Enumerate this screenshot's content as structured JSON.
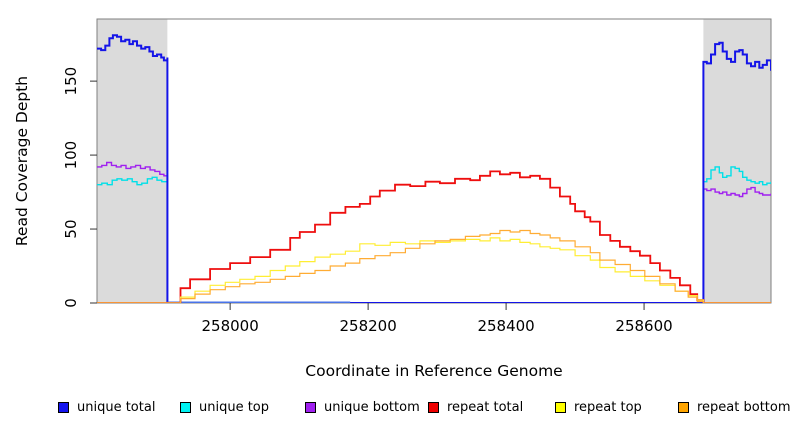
{
  "figure_title": "",
  "axes": {
    "x": {
      "title": "Coordinate in Reference Genome",
      "ticks": [
        258000,
        258200,
        258400,
        258600
      ],
      "range": [
        257807,
        258784
      ]
    },
    "y": {
      "title": "Read Coverage Depth",
      "ticks": [
        0,
        50,
        100,
        150
      ],
      "range": [
        0,
        192
      ]
    }
  },
  "legend": [
    {
      "label": "unique total",
      "color": "#1414EE"
    },
    {
      "label": "unique top",
      "color": "#00F2F2"
    },
    {
      "label": "unique bottom",
      "color": "#A020F0"
    },
    {
      "label": "repeat total",
      "color": "#EE0000"
    },
    {
      "label": "repeat top",
      "color": "#FFFF00"
    },
    {
      "label": "repeat bottom",
      "color": "#FFA500"
    }
  ],
  "chart_data": {
    "type": "line",
    "style": "step-coverage",
    "xlabel": "Coordinate in Reference Genome",
    "ylabel": "Read Coverage Depth",
    "xlim": [
      257807,
      258784
    ],
    "ylim": [
      0,
      192
    ],
    "grid": false,
    "legend_position": "bottom-horizontal",
    "shaded_regions": [
      {
        "x0": 257807,
        "x1": 257909,
        "color": "#DBDBDB"
      },
      {
        "x0": 258686,
        "x1": 258784,
        "color": "#DBDBDB"
      }
    ],
    "overlap_segment": {
      "x0": 257909,
      "x1": 258174,
      "y": 0,
      "color": "#4973E8",
      "width": 3
    },
    "series": [
      {
        "name": "unique top",
        "color": "#00E0E8",
        "width": 1.4,
        "points": [
          [
            257807,
            80
          ],
          [
            257814,
            81
          ],
          [
            257822,
            80
          ],
          [
            257829,
            83
          ],
          [
            257836,
            84
          ],
          [
            257843,
            83
          ],
          [
            257851,
            84
          ],
          [
            257858,
            82
          ],
          [
            257865,
            80
          ],
          [
            257872,
            81
          ],
          [
            257880,
            84
          ],
          [
            257887,
            85
          ],
          [
            257894,
            83
          ],
          [
            257901,
            82
          ],
          [
            257909,
            84
          ],
          [
            257909,
            0
          ],
          [
            258686,
            0
          ],
          [
            258686,
            82
          ],
          [
            258691,
            84
          ],
          [
            258697,
            90
          ],
          [
            258703,
            92
          ],
          [
            258709,
            88
          ],
          [
            258714,
            85
          ],
          [
            258720,
            86
          ],
          [
            258726,
            92
          ],
          [
            258732,
            91
          ],
          [
            258738,
            89
          ],
          [
            258743,
            85
          ],
          [
            258749,
            83
          ],
          [
            258755,
            82
          ],
          [
            258761,
            81
          ],
          [
            258767,
            82
          ],
          [
            258772,
            80
          ],
          [
            258778,
            81
          ],
          [
            258784,
            82
          ]
        ]
      },
      {
        "name": "unique bottom",
        "color": "#A020F0",
        "width": 1.4,
        "points": [
          [
            257807,
            92
          ],
          [
            257814,
            93
          ],
          [
            257821,
            95
          ],
          [
            257828,
            93
          ],
          [
            257835,
            92
          ],
          [
            257842,
            93
          ],
          [
            257849,
            91
          ],
          [
            257856,
            92
          ],
          [
            257863,
            93
          ],
          [
            257870,
            91
          ],
          [
            257877,
            92
          ],
          [
            257884,
            90
          ],
          [
            257891,
            89
          ],
          [
            257898,
            87
          ],
          [
            257904,
            86
          ],
          [
            257909,
            85
          ],
          [
            257909,
            0
          ],
          [
            258686,
            0
          ],
          [
            258686,
            77
          ],
          [
            258691,
            76
          ],
          [
            258697,
            77
          ],
          [
            258703,
            75
          ],
          [
            258709,
            74
          ],
          [
            258714,
            75
          ],
          [
            258720,
            73
          ],
          [
            258726,
            74
          ],
          [
            258732,
            73
          ],
          [
            258738,
            72
          ],
          [
            258743,
            74
          ],
          [
            258749,
            77
          ],
          [
            258755,
            78
          ],
          [
            258761,
            75
          ],
          [
            258767,
            74
          ],
          [
            258772,
            73
          ],
          [
            258778,
            73
          ],
          [
            258784,
            74
          ]
        ]
      },
      {
        "name": "unique total",
        "color": "#1414E8",
        "width": 2,
        "points": [
          [
            257807,
            172
          ],
          [
            257813,
            171
          ],
          [
            257819,
            174
          ],
          [
            257825,
            179
          ],
          [
            257830,
            181
          ],
          [
            257836,
            180
          ],
          [
            257842,
            177
          ],
          [
            257848,
            178
          ],
          [
            257854,
            175
          ],
          [
            257859,
            177
          ],
          [
            257865,
            174
          ],
          [
            257871,
            172
          ],
          [
            257877,
            173
          ],
          [
            257883,
            170
          ],
          [
            257888,
            167
          ],
          [
            257894,
            168
          ],
          [
            257900,
            166
          ],
          [
            257904,
            164
          ],
          [
            257909,
            166
          ],
          [
            257909,
            0
          ],
          [
            258686,
            0
          ],
          [
            258686,
            163
          ],
          [
            258691,
            162
          ],
          [
            258697,
            168
          ],
          [
            258703,
            175
          ],
          [
            258709,
            176
          ],
          [
            258714,
            170
          ],
          [
            258720,
            165
          ],
          [
            258726,
            163
          ],
          [
            258732,
            170
          ],
          [
            258738,
            171
          ],
          [
            258743,
            168
          ],
          [
            258749,
            162
          ],
          [
            258755,
            160
          ],
          [
            258761,
            163
          ],
          [
            258767,
            159
          ],
          [
            258772,
            161
          ],
          [
            258778,
            164
          ],
          [
            258784,
            157
          ]
        ]
      },
      {
        "name": "repeat total",
        "color": "#EE0E0E",
        "width": 1.8,
        "points": [
          [
            257807,
            0
          ],
          [
            257909,
            0
          ],
          [
            257928,
            10
          ],
          [
            257942,
            16
          ],
          [
            257971,
            23
          ],
          [
            258000,
            27
          ],
          [
            258029,
            31
          ],
          [
            258058,
            36
          ],
          [
            258087,
            44
          ],
          [
            258101,
            48
          ],
          [
            258123,
            53
          ],
          [
            258145,
            61
          ],
          [
            258167,
            65
          ],
          [
            258188,
            67
          ],
          [
            258203,
            72
          ],
          [
            258217,
            76
          ],
          [
            258239,
            80
          ],
          [
            258261,
            79
          ],
          [
            258283,
            82
          ],
          [
            258304,
            81
          ],
          [
            258326,
            84
          ],
          [
            258348,
            83
          ],
          [
            258362,
            86
          ],
          [
            258377,
            89
          ],
          [
            258391,
            87
          ],
          [
            258406,
            88
          ],
          [
            258420,
            85
          ],
          [
            258435,
            86
          ],
          [
            258449,
            84
          ],
          [
            258464,
            78
          ],
          [
            258478,
            72
          ],
          [
            258493,
            67
          ],
          [
            258500,
            62
          ],
          [
            258514,
            58
          ],
          [
            258522,
            55
          ],
          [
            258536,
            46
          ],
          [
            258551,
            42
          ],
          [
            258565,
            38
          ],
          [
            258580,
            35
          ],
          [
            258594,
            32
          ],
          [
            258609,
            27
          ],
          [
            258623,
            22
          ],
          [
            258638,
            17
          ],
          [
            258652,
            12
          ],
          [
            258667,
            6
          ],
          [
            258677,
            2
          ],
          [
            258686,
            0
          ],
          [
            258784,
            0
          ]
        ]
      },
      {
        "name": "repeat top",
        "color": "#FFEE33",
        "width": 1.2,
        "points": [
          [
            257807,
            0
          ],
          [
            257909,
            0
          ],
          [
            257928,
            4
          ],
          [
            257949,
            8
          ],
          [
            257971,
            12
          ],
          [
            257993,
            14
          ],
          [
            258014,
            16
          ],
          [
            258036,
            18
          ],
          [
            258058,
            22
          ],
          [
            258080,
            25
          ],
          [
            258101,
            28
          ],
          [
            258123,
            31
          ],
          [
            258145,
            33
          ],
          [
            258167,
            35
          ],
          [
            258188,
            40
          ],
          [
            258210,
            39
          ],
          [
            258232,
            41
          ],
          [
            258254,
            40
          ],
          [
            258275,
            42
          ],
          [
            258297,
            41
          ],
          [
            258319,
            42
          ],
          [
            258341,
            43
          ],
          [
            258362,
            42
          ],
          [
            258377,
            44
          ],
          [
            258391,
            42
          ],
          [
            258406,
            43
          ],
          [
            258420,
            41
          ],
          [
            258435,
            40
          ],
          [
            258449,
            38
          ],
          [
            258464,
            37
          ],
          [
            258478,
            36
          ],
          [
            258500,
            32
          ],
          [
            258522,
            29
          ],
          [
            258536,
            24
          ],
          [
            258558,
            21
          ],
          [
            258580,
            18
          ],
          [
            258601,
            15
          ],
          [
            258623,
            12
          ],
          [
            258645,
            8
          ],
          [
            258664,
            5
          ],
          [
            258677,
            2
          ],
          [
            258686,
            0
          ],
          [
            258784,
            0
          ]
        ]
      },
      {
        "name": "repeat bottom",
        "color": "#FFAC33",
        "width": 1.2,
        "points": [
          [
            257807,
            0
          ],
          [
            257909,
            0
          ],
          [
            257928,
            3
          ],
          [
            257949,
            6
          ],
          [
            257971,
            9
          ],
          [
            257993,
            11
          ],
          [
            258014,
            13
          ],
          [
            258036,
            14
          ],
          [
            258058,
            16
          ],
          [
            258080,
            18
          ],
          [
            258101,
            20
          ],
          [
            258123,
            22
          ],
          [
            258145,
            25
          ],
          [
            258167,
            27
          ],
          [
            258188,
            30
          ],
          [
            258210,
            32
          ],
          [
            258232,
            34
          ],
          [
            258254,
            37
          ],
          [
            258275,
            40
          ],
          [
            258297,
            42
          ],
          [
            258319,
            43
          ],
          [
            258341,
            45
          ],
          [
            258362,
            46
          ],
          [
            258377,
            47
          ],
          [
            258391,
            49
          ],
          [
            258406,
            48
          ],
          [
            258420,
            49
          ],
          [
            258435,
            47
          ],
          [
            258449,
            46
          ],
          [
            258464,
            44
          ],
          [
            258478,
            42
          ],
          [
            258500,
            38
          ],
          [
            258522,
            34
          ],
          [
            258536,
            29
          ],
          [
            258558,
            26
          ],
          [
            258580,
            22
          ],
          [
            258601,
            18
          ],
          [
            258623,
            13
          ],
          [
            258645,
            8
          ],
          [
            258664,
            4
          ],
          [
            258677,
            1
          ],
          [
            258686,
            0
          ],
          [
            258784,
            0
          ]
        ]
      }
    ]
  }
}
